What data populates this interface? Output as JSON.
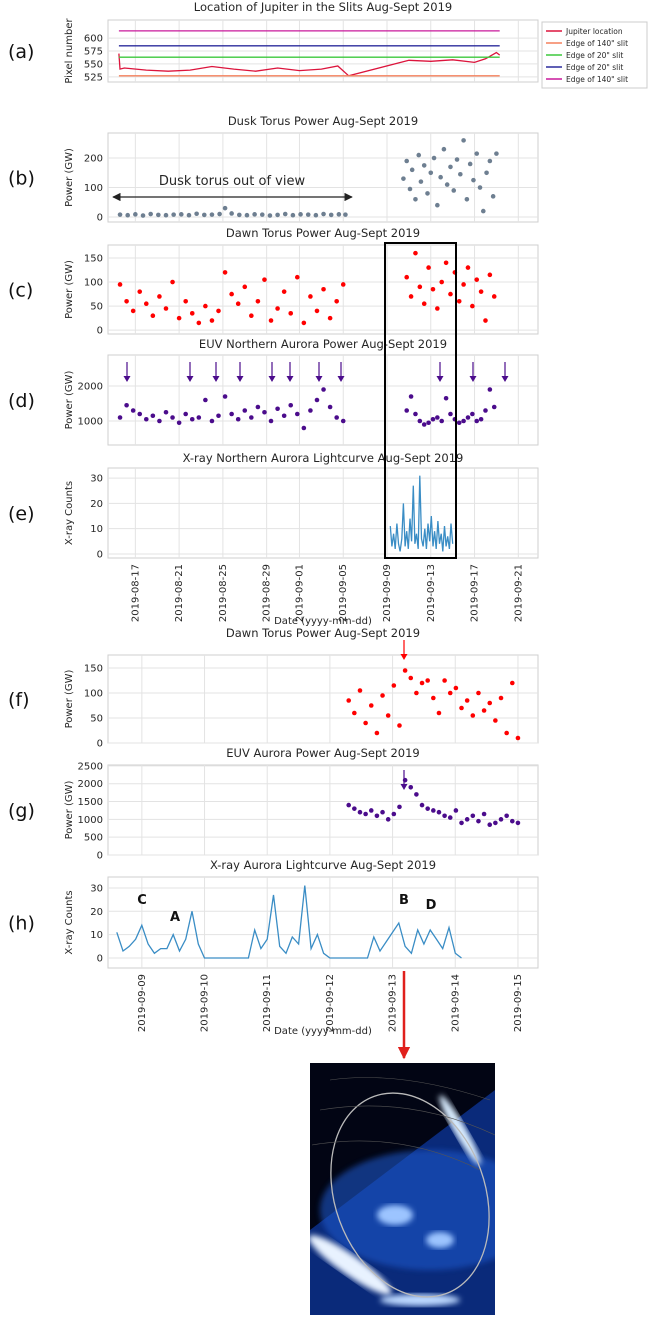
{
  "chart_data": [
    {
      "type": "line",
      "panel_label": "(a)",
      "title": "Location of Jupiter in the Slits Aug-Sept 2019",
      "ylabel": "Pixel number",
      "xlim": [
        226.5,
        265.8
      ],
      "xticks": [
        229,
        233,
        237,
        241,
        244,
        248,
        252,
        256,
        260,
        264
      ],
      "ylim": [
        515,
        635
      ],
      "yticks": [
        525,
        550,
        575,
        600
      ],
      "grid": true,
      "legend": "right",
      "series": [
        {
          "name": "Jupiter location",
          "color": "#dc143c",
          "x": [
            227.5,
            227.6,
            228,
            230,
            232,
            234,
            236,
            238,
            240,
            242,
            244,
            246,
            247.5,
            248.5,
            254,
            256,
            258,
            260,
            261,
            262,
            262.3
          ],
          "values": [
            570,
            540,
            542,
            538,
            536,
            538,
            545,
            540,
            536,
            542,
            537,
            540,
            546,
            527,
            557,
            555,
            558,
            553,
            560,
            572,
            567
          ]
        },
        {
          "name": "Edge of 140\" slit",
          "color": "#f4805c",
          "x": [
            227.5,
            262.3
          ],
          "values": [
            527,
            527
          ]
        },
        {
          "name": "Edge of 20\" slit",
          "color": "#3cc83c",
          "x": [
            227.5,
            262.3
          ],
          "values": [
            563,
            563
          ]
        },
        {
          "name": "Edge of 20\" slit",
          "color": "#2b2b9c",
          "x": [
            227.5,
            262.3
          ],
          "values": [
            585,
            585
          ]
        },
        {
          "name": "Edge of 140\" slit",
          "color": "#c8199b",
          "x": [
            227.5,
            262.3
          ],
          "values": [
            614,
            614
          ]
        }
      ]
    },
    {
      "type": "scatter",
      "panel_label": "(b)",
      "title": "Dusk Torus Power Aug-Sept 2019",
      "ylabel": "Power (GW)",
      "annotation": "Dusk torus out of view",
      "xlim": [
        226.5,
        265.8
      ],
      "xticks": [
        229,
        233,
        237,
        241,
        244,
        248,
        252,
        256,
        260,
        264
      ],
      "ylim": [
        -17,
        285
      ],
      "yticks": [
        0,
        100,
        200
      ],
      "grid": true,
      "series": [
        {
          "color": "#6e7f91",
          "x": [
            227.6,
            228.3,
            229,
            229.7,
            230.4,
            231.1,
            231.8,
            232.5,
            233.2,
            233.9,
            234.6,
            235.3,
            236,
            236.7,
            237.2,
            237.8,
            238.5,
            239.2,
            239.9,
            240.6,
            241.3,
            242,
            242.7,
            243.4,
            244.1,
            244.8,
            245.5,
            246.2,
            246.9,
            247.6,
            248.2,
            253.5,
            253.8,
            254.1,
            254.3,
            254.6,
            254.9,
            255.1,
            255.4,
            255.7,
            256,
            256.3,
            256.6,
            256.9,
            257.2,
            257.5,
            257.8,
            258.1,
            258.4,
            258.7,
            259,
            259.3,
            259.6,
            259.9,
            260.2,
            260.5,
            260.8,
            261.1,
            261.4,
            261.7,
            262
          ],
          "values": [
            8,
            6,
            9,
            5,
            10,
            7,
            6,
            8,
            9,
            6,
            11,
            7,
            8,
            10,
            30,
            12,
            7,
            6,
            9,
            8,
            5,
            7,
            10,
            6,
            9,
            8,
            6,
            10,
            7,
            9,
            8,
            130,
            190,
            95,
            160,
            60,
            210,
            120,
            175,
            80,
            150,
            200,
            40,
            135,
            230,
            110,
            170,
            90,
            195,
            145,
            260,
            60,
            180,
            125,
            215,
            100,
            20,
            150,
            190,
            70,
            215
          ]
        }
      ]
    },
    {
      "type": "scatter",
      "panel_label": "(c)",
      "title": "Dawn Torus Power Aug-Sept 2019",
      "ylabel": "Power (GW)",
      "xlim": [
        226.5,
        265.8
      ],
      "xticks": [
        229,
        233,
        237,
        241,
        244,
        248,
        252,
        256,
        260,
        264
      ],
      "ylim": [
        -8,
        177
      ],
      "yticks": [
        0,
        50,
        100,
        150
      ],
      "grid": true,
      "series": [
        {
          "color": "#ff0000",
          "x": [
            227.6,
            228.2,
            228.8,
            229.4,
            230,
            230.6,
            231.2,
            231.8,
            232.4,
            233,
            233.6,
            234.2,
            234.8,
            235.4,
            236,
            236.6,
            237.2,
            237.8,
            238.4,
            239,
            239.6,
            240.2,
            240.8,
            241.4,
            242,
            242.6,
            243.2,
            243.8,
            244.4,
            245,
            245.6,
            246.2,
            246.8,
            247.4,
            248,
            253.8,
            254.2,
            254.6,
            255,
            255.4,
            255.8,
            256.2,
            256.6,
            257,
            257.4,
            257.8,
            258.2,
            258.6,
            259,
            259.4,
            259.8,
            260.2,
            260.6,
            261,
            261.4,
            261.8
          ],
          "values": [
            95,
            60,
            40,
            80,
            55,
            30,
            70,
            45,
            100,
            25,
            60,
            35,
            15,
            50,
            20,
            40,
            120,
            75,
            55,
            90,
            30,
            60,
            105,
            20,
            45,
            80,
            35,
            110,
            15,
            70,
            40,
            85,
            25,
            60,
            95,
            110,
            70,
            160,
            90,
            55,
            130,
            85,
            45,
            100,
            140,
            75,
            120,
            60,
            95,
            130,
            50,
            105,
            80,
            20,
            115,
            70
          ]
        }
      ]
    },
    {
      "type": "scatter",
      "panel_label": "(d)",
      "title": "EUV Northern Aurora Power Aug-Sept 2019",
      "ylabel": "Power (GW)",
      "xlim": [
        226.5,
        265.8
      ],
      "xticks": [
        229,
        233,
        237,
        241,
        244,
        248,
        252,
        256,
        260,
        264
      ],
      "ylim": [
        314,
        2886
      ],
      "yticks": [
        1000,
        2000
      ],
      "grid": true,
      "series": [
        {
          "color": "#4b0c8c",
          "x": [
            227.6,
            228.2,
            228.8,
            229.4,
            230,
            230.6,
            231.2,
            231.8,
            232.4,
            233,
            233.6,
            234.2,
            234.8,
            235.4,
            236,
            236.6,
            237.2,
            237.8,
            238.4,
            239,
            239.6,
            240.2,
            240.8,
            241.4,
            242,
            242.6,
            243.2,
            243.8,
            244.4,
            245,
            245.6,
            246.2,
            246.8,
            247.4,
            248,
            253.8,
            254.2,
            254.6,
            255,
            255.4,
            255.8,
            256.2,
            256.6,
            257,
            257.4,
            257.8,
            258.2,
            258.6,
            259,
            259.4,
            259.8,
            260.2,
            260.6,
            261,
            261.4,
            261.8
          ],
          "values": [
            1100,
            1450,
            1300,
            1200,
            1050,
            1150,
            1000,
            1250,
            1100,
            950,
            1200,
            1050,
            1100,
            1600,
            1000,
            1150,
            1700,
            1200,
            1050,
            1300,
            1100,
            1400,
            1250,
            1000,
            1350,
            1150,
            1450,
            1200,
            800,
            1300,
            1600,
            1900,
            1400,
            1100,
            1000,
            1300,
            1700,
            1200,
            1000,
            900,
            950,
            1050,
            1100,
            1000,
            1650,
            1200,
            1050,
            950,
            1000,
            1100,
            1200,
            1000,
            1050,
            1300,
            1900,
            1400
          ]
        }
      ]
    },
    {
      "type": "line",
      "panel_label": "(e)",
      "title": "X-ray Northern Aurora Lightcurve Aug-Sept 2019",
      "ylabel": "X-ray Counts",
      "xlabel": "Date (yyyy-mm-dd)",
      "xlim": [
        226.5,
        265.8
      ],
      "xticks": [
        {
          "value": 229,
          "label": "2019-08-17"
        },
        {
          "value": 233,
          "label": "2019-08-21"
        },
        {
          "value": 237,
          "label": "2019-08-25"
        },
        {
          "value": 241,
          "label": "2019-08-29"
        },
        {
          "value": 244,
          "label": "2019-09-01"
        },
        {
          "value": 248,
          "label": "2019-09-05"
        },
        {
          "value": 252,
          "label": "2019-09-09"
        },
        {
          "value": 256,
          "label": "2019-09-13"
        },
        {
          "value": 260,
          "label": "2019-09-17"
        },
        {
          "value": 264,
          "label": "2019-09-21"
        }
      ],
      "ylim": [
        -1.6,
        34
      ],
      "yticks": [
        0,
        10,
        20,
        30
      ],
      "grid": true,
      "series": [
        {
          "color": "#3a8dc5",
          "x": [
            252.3,
            252.45,
            252.6,
            252.75,
            252.9,
            253.05,
            253.2,
            253.35,
            253.5,
            253.65,
            253.8,
            253.95,
            254.1,
            254.25,
            254.4,
            254.55,
            254.7,
            254.85,
            255,
            255.15,
            255.3,
            255.45,
            255.6,
            255.75,
            255.9,
            256.05,
            256.2,
            256.35,
            256.5,
            256.65,
            256.8,
            256.95,
            257.1,
            257.25,
            257.4,
            257.55,
            257.7,
            257.85,
            258
          ],
          "values": [
            11,
            3,
            8,
            2,
            12,
            4,
            1,
            6,
            20,
            3,
            9,
            2,
            14,
            5,
            27,
            4,
            8,
            2,
            31,
            6,
            3,
            10,
            2,
            12,
            5,
            15,
            3,
            9,
            2,
            13,
            4,
            8,
            1,
            11,
            3,
            7,
            2,
            12,
            4
          ]
        }
      ]
    },
    {
      "type": "scatter",
      "panel_label": "(f)",
      "title": "Dawn Torus Power Aug-Sept 2019",
      "ylabel": "Power (GW)",
      "xlim": [
        251.46,
        258.32
      ],
      "xticks": [
        252,
        253,
        254,
        255,
        256,
        257,
        258
      ],
      "ylim": [
        0,
        176
      ],
      "yticks": [
        0,
        50,
        100,
        150
      ],
      "grid": true,
      "series": [
        {
          "color": "#ff0000",
          "x": [
            255.3,
            255.39,
            255.48,
            255.57,
            255.66,
            255.75,
            255.84,
            255.93,
            256.02,
            256.11,
            256.2,
            256.29,
            256.38,
            256.47,
            256.56,
            256.65,
            256.74,
            256.83,
            256.92,
            257.01,
            257.1,
            257.19,
            257.28,
            257.37,
            257.46,
            257.55,
            257.64,
            257.73,
            257.82,
            257.91,
            258
          ],
          "values": [
            85,
            60,
            105,
            40,
            75,
            20,
            95,
            55,
            115,
            35,
            145,
            130,
            100,
            120,
            125,
            90,
            60,
            125,
            100,
            110,
            70,
            85,
            55,
            100,
            65,
            80,
            45,
            90,
            20,
            120,
            10
          ]
        }
      ]
    },
    {
      "type": "scatter",
      "panel_label": "(g)",
      "title": "EUV Aurora Power Aug-Sept 2019",
      "ylabel": "Power (GW)",
      "xlim": [
        251.46,
        258.32
      ],
      "xticks": [
        252,
        253,
        254,
        255,
        256,
        257,
        258
      ],
      "ylim": [
        0,
        2525
      ],
      "yticks": [
        0,
        500,
        1000,
        1500,
        2000,
        2500
      ],
      "grid": true,
      "series": [
        {
          "color": "#4b0c8c",
          "x": [
            255.3,
            255.39,
            255.48,
            255.57,
            255.66,
            255.75,
            255.84,
            255.93,
            256.02,
            256.11,
            256.2,
            256.29,
            256.38,
            256.47,
            256.56,
            256.65,
            256.74,
            256.83,
            256.92,
            257.01,
            257.1,
            257.19,
            257.28,
            257.37,
            257.46,
            257.55,
            257.64,
            257.73,
            257.82,
            257.91,
            258
          ],
          "values": [
            1400,
            1300,
            1200,
            1150,
            1250,
            1100,
            1200,
            1000,
            1150,
            1350,
            2100,
            1900,
            1700,
            1400,
            1300,
            1250,
            1200,
            1100,
            1050,
            1250,
            900,
            1000,
            1100,
            950,
            1150,
            850,
            900,
            1000,
            1100,
            950,
            900
          ]
        }
      ]
    },
    {
      "type": "line",
      "panel_label": "(h)",
      "title": "X-ray Aurora Lightcurve Aug-Sept 2019",
      "ylabel": "X-ray Counts",
      "xlabel": "Date (yyyy-mm-dd)",
      "annotations": [
        "C",
        "A",
        "B",
        "D"
      ],
      "xlim": [
        251.46,
        258.32
      ],
      "xticks": [
        {
          "value": 252,
          "label": "2019-09-09"
        },
        {
          "value": 253,
          "label": "2019-09-10"
        },
        {
          "value": 254,
          "label": "2019-09-11"
        },
        {
          "value": 255,
          "label": "2019-09-12"
        },
        {
          "value": 256,
          "label": "2019-09-13"
        },
        {
          "value": 257,
          "label": "2019-09-14"
        },
        {
          "value": 258,
          "label": "2019-09-15"
        }
      ],
      "ylim": [
        -4.3,
        34.7
      ],
      "yticks": [
        0,
        10,
        20,
        30
      ],
      "grid": true,
      "series": [
        {
          "color": "#3a8dc5",
          "x": [
            251.6,
            251.7,
            251.8,
            251.9,
            252,
            252.1,
            252.2,
            252.3,
            252.4,
            252.5,
            252.6,
            252.7,
            252.8,
            252.9,
            253.0,
            253.7,
            253.8,
            253.9,
            254,
            254.1,
            254.2,
            254.3,
            254.4,
            254.5,
            254.6,
            254.7,
            254.8,
            254.9,
            255.0,
            255.6,
            255.7,
            255.8,
            255.9,
            256,
            256.1,
            256.2,
            256.3,
            256.4,
            256.5,
            256.6,
            256.7,
            256.8,
            256.9,
            257,
            257.1
          ],
          "values": [
            11,
            3,
            5,
            8,
            14,
            6,
            2,
            4,
            4,
            10,
            3,
            8,
            20,
            6,
            0,
            0,
            12,
            4,
            8,
            27,
            5,
            2,
            9,
            6,
            31,
            4,
            10,
            2,
            0,
            0,
            9,
            3,
            7,
            11,
            15,
            5,
            2,
            12,
            6,
            12,
            8,
            4,
            13,
            2,
            0
          ]
        }
      ]
    }
  ]
}
